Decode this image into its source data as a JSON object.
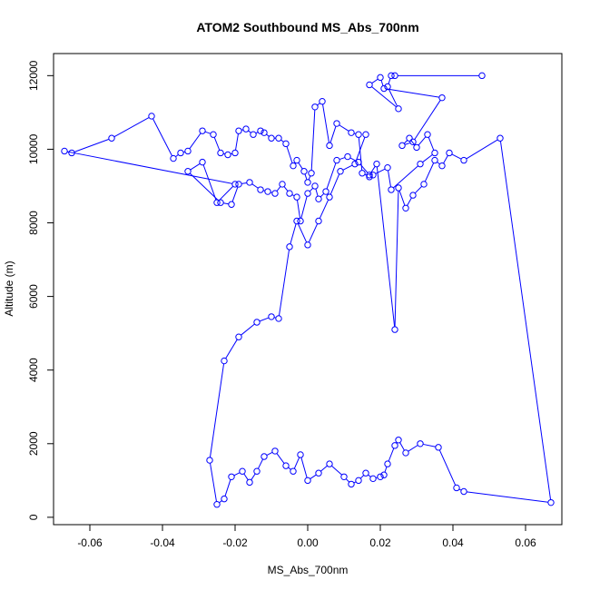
{
  "chart_data": {
    "type": "line",
    "title": "ATOM2 Southbound MS_Abs_700nm",
    "xlabel": "MS_Abs_700nm",
    "ylabel": "Altitude (m)",
    "xlim": [
      -0.07,
      0.07
    ],
    "ylim": [
      -200,
      12600
    ],
    "x_ticks": [
      -0.06,
      -0.04,
      -0.02,
      0.0,
      0.02,
      0.04,
      0.06
    ],
    "x_tick_labels": [
      "-0.06",
      "-0.04",
      "-0.02",
      "0.00",
      "0.02",
      "0.04",
      "0.06"
    ],
    "y_ticks": [
      0,
      2000,
      4000,
      6000,
      8000,
      10000,
      12000
    ],
    "y_tick_labels": [
      "0",
      "2000",
      "4000",
      "6000",
      "8000",
      "10000",
      "12000"
    ],
    "series": [
      {
        "color": "#0000ff",
        "marker": "open-circle",
        "x": [
          0.048,
          0.024,
          0.023,
          0.022,
          0.025,
          0.017,
          0.02,
          0.021,
          0.037,
          0.029,
          0.026,
          0.028,
          0.03,
          0.033,
          0.035,
          0.031,
          0.023,
          0.022,
          0.018,
          0.017,
          0.015,
          0.014,
          0.012,
          0.008,
          0.006,
          0.004,
          0.002,
          0.001,
          0.0,
          -0.001,
          -0.003,
          -0.004,
          -0.006,
          -0.008,
          -0.01,
          -0.012,
          -0.013,
          -0.015,
          -0.017,
          -0.019,
          -0.02,
          -0.022,
          -0.024,
          -0.026,
          -0.029,
          -0.033,
          -0.035,
          -0.037,
          -0.043,
          -0.054,
          -0.065,
          -0.067,
          -0.02,
          -0.025,
          -0.029,
          -0.033,
          -0.024,
          -0.021,
          -0.019,
          -0.016,
          -0.013,
          -0.011,
          -0.009,
          -0.007,
          -0.005,
          -0.003,
          -0.002,
          0.0,
          0.002,
          0.003,
          0.005,
          0.008,
          0.011,
          0.014,
          0.017,
          0.019,
          0.024,
          0.025,
          0.027,
          0.029,
          0.032,
          0.035,
          0.037,
          0.039,
          0.043,
          0.053,
          0.067,
          0.043,
          0.041,
          0.036,
          0.031,
          0.027,
          0.025,
          0.024,
          0.022,
          0.021,
          0.02,
          0.018,
          0.016,
          0.014,
          0.012,
          0.01,
          0.006,
          0.003,
          0.0,
          -0.002,
          -0.004,
          -0.006,
          -0.009,
          -0.012,
          -0.014,
          -0.016,
          -0.018,
          -0.021,
          -0.023,
          -0.025,
          -0.027,
          -0.023,
          -0.019,
          -0.014,
          -0.01,
          -0.008,
          -0.005,
          -0.003,
          0.0,
          0.003,
          0.006,
          0.009,
          0.013,
          0.016
        ],
        "y": [
          12000,
          12000,
          12000,
          11700,
          11100,
          11750,
          11950,
          11650,
          11400,
          10200,
          10100,
          10300,
          10050,
          10400,
          9900,
          9600,
          8900,
          9500,
          9300,
          9250,
          9350,
          10400,
          10450,
          10700,
          10100,
          11300,
          11150,
          9350,
          9100,
          9400,
          9700,
          9550,
          10150,
          10300,
          10300,
          10450,
          10500,
          10400,
          10550,
          10500,
          9900,
          9850,
          9900,
          10400,
          10500,
          9950,
          9900,
          9750,
          10900,
          10300,
          9900,
          9950,
          9050,
          8550,
          9650,
          9400,
          8550,
          8500,
          9050,
          9100,
          8900,
          8850,
          8800,
          9050,
          8800,
          8700,
          8050,
          8800,
          9000,
          8650,
          8850,
          9700,
          9800,
          9650,
          9300,
          9600,
          5100,
          8950,
          8400,
          8750,
          9050,
          9700,
          9550,
          9900,
          9700,
          10300,
          400,
          700,
          800,
          1900,
          2000,
          1750,
          2100,
          1950,
          1450,
          1150,
          1100,
          1050,
          1200,
          1000,
          900,
          1100,
          1450,
          1200,
          1000,
          1700,
          1250,
          1400,
          1800,
          1650,
          1250,
          950,
          1250,
          1100,
          500,
          350,
          1550,
          4250,
          4900,
          5300,
          5450,
          5400,
          7350,
          8050,
          7400,
          8050,
          8700,
          9400,
          9600,
          10400
        ]
      }
    ]
  }
}
